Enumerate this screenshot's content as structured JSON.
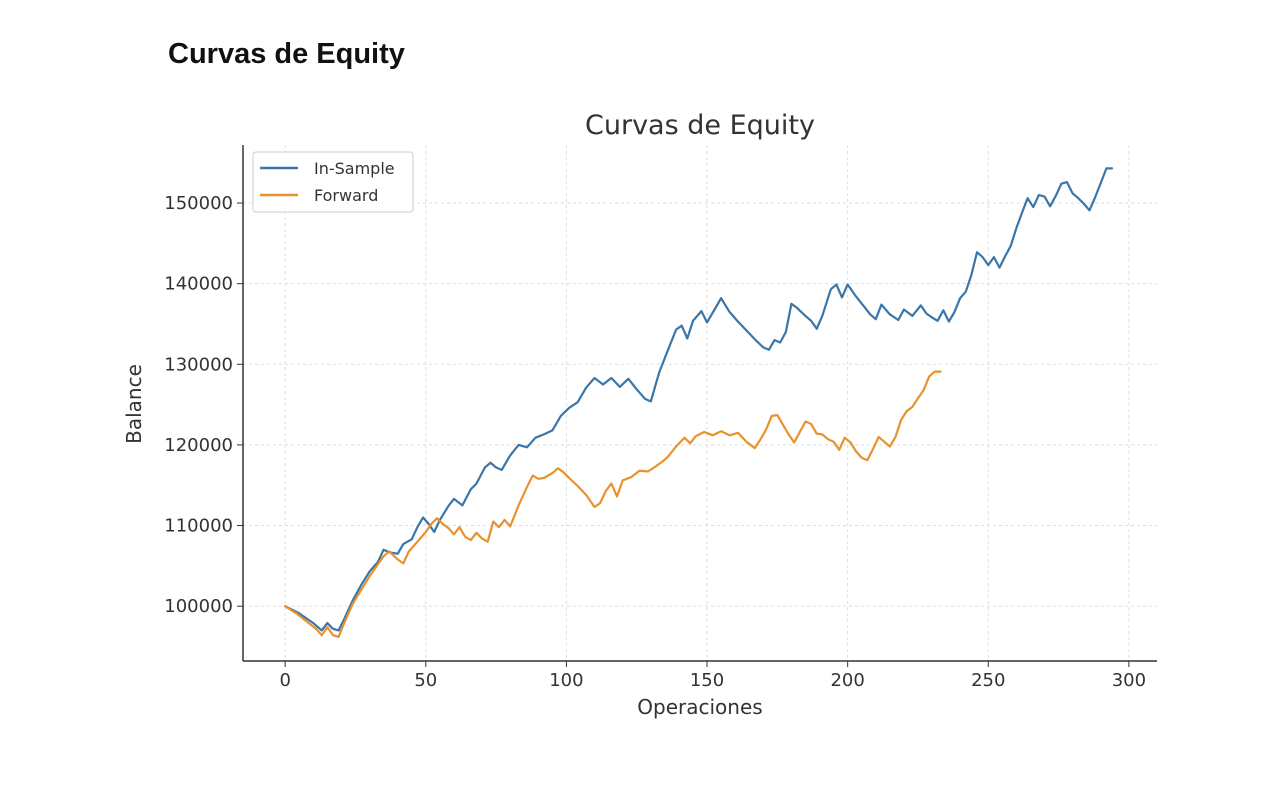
{
  "page": {
    "heading": "Curvas de Equity"
  },
  "chart_data": {
    "type": "line",
    "title": "Curvas de Equity",
    "xlabel": "Operaciones",
    "ylabel": "Balance",
    "xlim": [
      -15,
      310
    ],
    "ylim": [
      93200,
      157200
    ],
    "xticks": [
      0,
      50,
      100,
      150,
      200,
      250,
      300
    ],
    "yticks": [
      100000,
      110000,
      120000,
      130000,
      140000,
      150000
    ],
    "grid": true,
    "legend_position": "top-left",
    "series": [
      {
        "name": "In-Sample",
        "color": "#3a76a8",
        "points": [
          [
            0,
            100000
          ],
          [
            5,
            99100
          ],
          [
            10,
            97900
          ],
          [
            13,
            97000
          ],
          [
            15,
            97900
          ],
          [
            17,
            97200
          ],
          [
            19,
            97000
          ],
          [
            21,
            98400
          ],
          [
            24,
            100700
          ],
          [
            27,
            102600
          ],
          [
            30,
            104300
          ],
          [
            33,
            105500
          ],
          [
            35,
            107000
          ],
          [
            37,
            106700
          ],
          [
            40,
            106500
          ],
          [
            42,
            107700
          ],
          [
            45,
            108300
          ],
          [
            47,
            109800
          ],
          [
            49,
            111000
          ],
          [
            51,
            110200
          ],
          [
            53,
            109200
          ],
          [
            55,
            110700
          ],
          [
            58,
            112400
          ],
          [
            60,
            113300
          ],
          [
            63,
            112500
          ],
          [
            66,
            114500
          ],
          [
            68,
            115200
          ],
          [
            71,
            117200
          ],
          [
            73,
            117800
          ],
          [
            75,
            117200
          ],
          [
            77,
            116900
          ],
          [
            80,
            118700
          ],
          [
            83,
            120000
          ],
          [
            86,
            119700
          ],
          [
            89,
            120900
          ],
          [
            92,
            121300
          ],
          [
            95,
            121800
          ],
          [
            98,
            123600
          ],
          [
            101,
            124600
          ],
          [
            104,
            125300
          ],
          [
            107,
            127100
          ],
          [
            110,
            128300
          ],
          [
            113,
            127500
          ],
          [
            116,
            128300
          ],
          [
            119,
            127200
          ],
          [
            122,
            128200
          ],
          [
            125,
            126900
          ],
          [
            128,
            125700
          ],
          [
            130,
            125400
          ],
          [
            133,
            129000
          ],
          [
            136,
            131700
          ],
          [
            139,
            134300
          ],
          [
            141,
            134800
          ],
          [
            143,
            133200
          ],
          [
            145,
            135400
          ],
          [
            148,
            136600
          ],
          [
            150,
            135200
          ],
          [
            153,
            137000
          ],
          [
            155,
            138200
          ],
          [
            158,
            136500
          ],
          [
            161,
            135300
          ],
          [
            164,
            134200
          ],
          [
            167,
            133100
          ],
          [
            170,
            132100
          ],
          [
            172,
            131800
          ],
          [
            174,
            133000
          ],
          [
            176,
            132700
          ],
          [
            178,
            134000
          ],
          [
            180,
            137500
          ],
          [
            182,
            137000
          ],
          [
            185,
            136000
          ],
          [
            187,
            135400
          ],
          [
            189,
            134400
          ],
          [
            191,
            136000
          ],
          [
            194,
            139300
          ],
          [
            196,
            139900
          ],
          [
            198,
            138300
          ],
          [
            200,
            139900
          ],
          [
            203,
            138400
          ],
          [
            206,
            137100
          ],
          [
            208,
            136200
          ],
          [
            210,
            135600
          ],
          [
            212,
            137400
          ],
          [
            215,
            136200
          ],
          [
            218,
            135500
          ],
          [
            220,
            136800
          ],
          [
            223,
            136000
          ],
          [
            226,
            137300
          ],
          [
            228,
            136300
          ],
          [
            230,
            135800
          ],
          [
            232,
            135400
          ],
          [
            234,
            136700
          ],
          [
            236,
            135300
          ],
          [
            238,
            136500
          ],
          [
            240,
            138200
          ],
          [
            242,
            139000
          ],
          [
            244,
            141100
          ],
          [
            246,
            143900
          ],
          [
            248,
            143300
          ],
          [
            250,
            142300
          ],
          [
            252,
            143300
          ],
          [
            254,
            142000
          ],
          [
            256,
            143400
          ],
          [
            258,
            144700
          ],
          [
            260,
            146900
          ],
          [
            262,
            148800
          ],
          [
            264,
            150600
          ],
          [
            266,
            149500
          ],
          [
            268,
            151000
          ],
          [
            270,
            150800
          ],
          [
            272,
            149600
          ],
          [
            274,
            150900
          ],
          [
            276,
            152400
          ],
          [
            278,
            152600
          ],
          [
            280,
            151200
          ],
          [
            282,
            150600
          ],
          [
            284,
            149900
          ],
          [
            286,
            149100
          ],
          [
            288,
            150700
          ],
          [
            290,
            152500
          ],
          [
            292,
            154300
          ],
          [
            294,
            154300
          ]
        ]
      },
      {
        "name": "Forward",
        "color": "#e8922e",
        "points": [
          [
            0,
            100000
          ],
          [
            4,
            99100
          ],
          [
            8,
            98000
          ],
          [
            11,
            97200
          ],
          [
            13,
            96400
          ],
          [
            15,
            97400
          ],
          [
            17,
            96400
          ],
          [
            19,
            96200
          ],
          [
            21,
            97900
          ],
          [
            24,
            100300
          ],
          [
            27,
            102000
          ],
          [
            30,
            103700
          ],
          [
            33,
            105200
          ],
          [
            35,
            106200
          ],
          [
            37,
            106800
          ],
          [
            40,
            105800
          ],
          [
            42,
            105300
          ],
          [
            44,
            106800
          ],
          [
            47,
            108000
          ],
          [
            50,
            109200
          ],
          [
            52,
            110200
          ],
          [
            54,
            110900
          ],
          [
            56,
            110200
          ],
          [
            58,
            109700
          ],
          [
            60,
            108900
          ],
          [
            62,
            109800
          ],
          [
            64,
            108600
          ],
          [
            66,
            108200
          ],
          [
            68,
            109100
          ],
          [
            70,
            108400
          ],
          [
            72,
            108000
          ],
          [
            74,
            110500
          ],
          [
            76,
            109800
          ],
          [
            78,
            110700
          ],
          [
            80,
            109900
          ],
          [
            83,
            112500
          ],
          [
            86,
            114800
          ],
          [
            88,
            116200
          ],
          [
            90,
            115800
          ],
          [
            92,
            115900
          ],
          [
            95,
            116500
          ],
          [
            97,
            117100
          ],
          [
            99,
            116600
          ],
          [
            101,
            115900
          ],
          [
            104,
            114900
          ],
          [
            107,
            113800
          ],
          [
            110,
            112300
          ],
          [
            112,
            112800
          ],
          [
            114,
            114300
          ],
          [
            116,
            115200
          ],
          [
            118,
            113600
          ],
          [
            120,
            115600
          ],
          [
            123,
            116000
          ],
          [
            126,
            116800
          ],
          [
            129,
            116700
          ],
          [
            132,
            117400
          ],
          [
            134,
            117900
          ],
          [
            136,
            118500
          ],
          [
            139,
            119800
          ],
          [
            142,
            120900
          ],
          [
            144,
            120200
          ],
          [
            146,
            121100
          ],
          [
            149,
            121600
          ],
          [
            152,
            121200
          ],
          [
            155,
            121700
          ],
          [
            158,
            121200
          ],
          [
            161,
            121500
          ],
          [
            164,
            120400
          ],
          [
            167,
            119600
          ],
          [
            169,
            120700
          ],
          [
            171,
            121900
          ],
          [
            173,
            123600
          ],
          [
            175,
            123700
          ],
          [
            177,
            122500
          ],
          [
            179,
            121300
          ],
          [
            181,
            120300
          ],
          [
            183,
            121600
          ],
          [
            185,
            122900
          ],
          [
            187,
            122600
          ],
          [
            189,
            121400
          ],
          [
            191,
            121300
          ],
          [
            193,
            120700
          ],
          [
            195,
            120400
          ],
          [
            197,
            119400
          ],
          [
            199,
            120900
          ],
          [
            201,
            120300
          ],
          [
            203,
            119200
          ],
          [
            205,
            118400
          ],
          [
            207,
            118100
          ],
          [
            209,
            119500
          ],
          [
            211,
            121000
          ],
          [
            213,
            120400
          ],
          [
            215,
            119800
          ],
          [
            217,
            121000
          ],
          [
            219,
            123100
          ],
          [
            221,
            124200
          ],
          [
            223,
            124700
          ],
          [
            225,
            125800
          ],
          [
            227,
            126800
          ],
          [
            229,
            128500
          ],
          [
            231,
            129100
          ],
          [
            233,
            129100
          ]
        ]
      }
    ]
  }
}
